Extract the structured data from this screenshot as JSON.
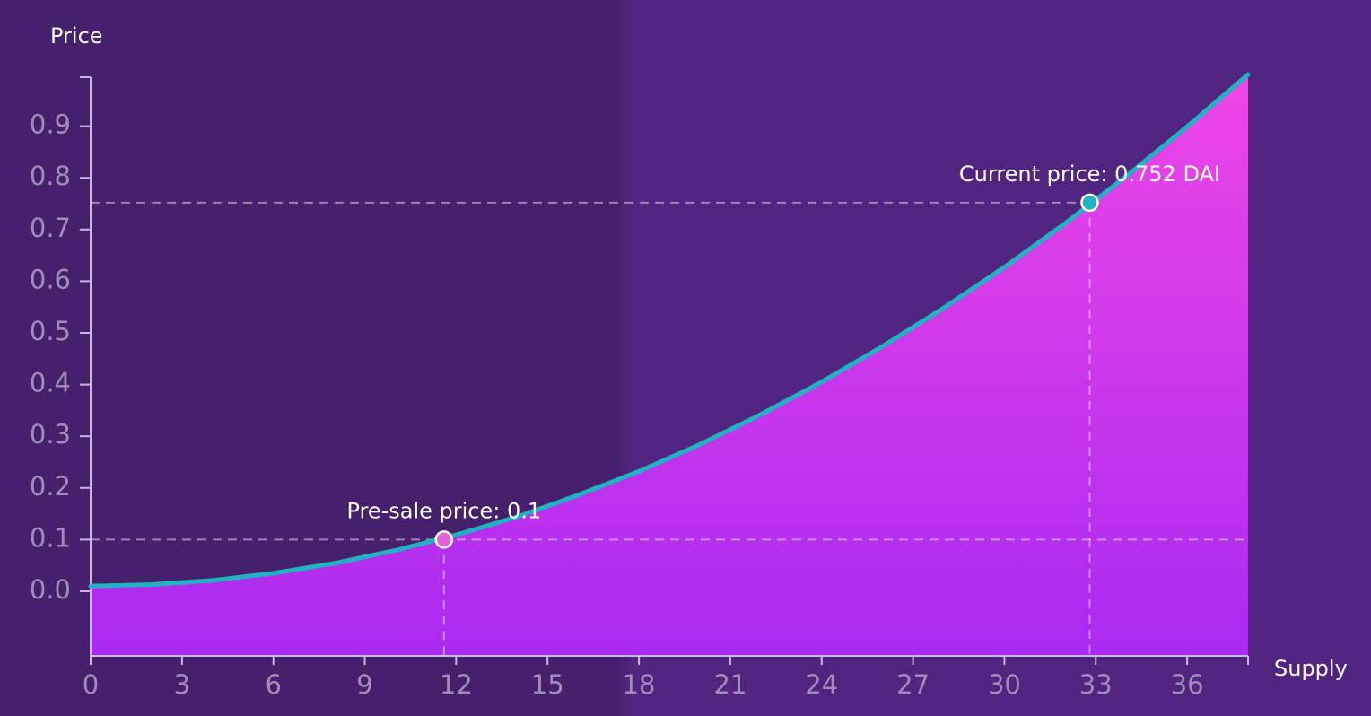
{
  "chart_data": {
    "type": "area",
    "x_label": "Supply",
    "y_label": "Price",
    "x": [
      0,
      2,
      4,
      6,
      8,
      10,
      12,
      14,
      16,
      18,
      20,
      22,
      24,
      26,
      28,
      30,
      32,
      34,
      36,
      38
    ],
    "series": [
      {
        "color": "#1fb3c4",
        "fill_top": "#ee46e6",
        "fill_bottom": "#a92af0",
        "values": [
          0.01,
          0.013,
          0.021,
          0.035,
          0.054,
          0.079,
          0.109,
          0.144,
          0.186,
          0.232,
          0.284,
          0.342,
          0.405,
          0.474,
          0.548,
          0.627,
          0.712,
          0.803,
          0.899,
          1.0
        ]
      }
    ],
    "xlim": [
      0,
      38
    ],
    "ylim": [
      -0.125,
      1.0
    ],
    "xticks": [
      0,
      3,
      6,
      9,
      12,
      15,
      18,
      21,
      24,
      27,
      30,
      33,
      36
    ],
    "yticks": [
      {
        "value": 0,
        "label": "0.0"
      },
      0.1,
      0.2,
      0.3,
      0.4,
      0.5,
      0.6,
      0.7,
      0.8,
      0.9
    ],
    "annotations": [
      {
        "text": "Pre-sale price: 0.1",
        "x": 11.6,
        "y": 0.1,
        "color": "#e660d8",
        "hline_full": true
      },
      {
        "text": "Current price: 0.752 DAI",
        "x": 32.8,
        "y": 0.752,
        "color": "#1fb3c4",
        "hline_full": false
      }
    ]
  }
}
